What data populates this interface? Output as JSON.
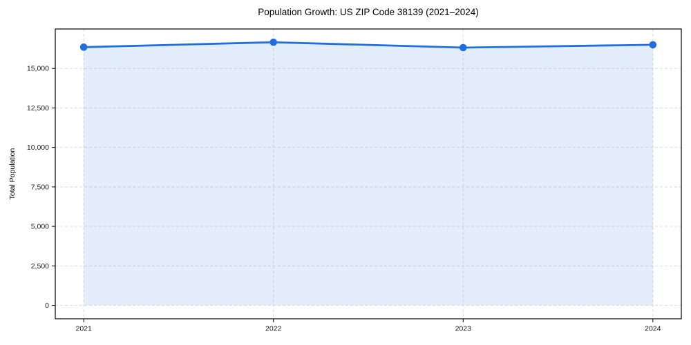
{
  "title": "Population Growth: US ZIP Code 38139 (2021–2024)",
  "chart_data": {
    "type": "area",
    "title": "Population Growth: US ZIP Code 38139 (2021–2024)",
    "xlabel": "",
    "ylabel": "Total Population",
    "categories": [
      "2021",
      "2022",
      "2023",
      "2024"
    ],
    "x": [
      2021,
      2022,
      2023,
      2024
    ],
    "series": [
      {
        "name": "Total Population",
        "values": [
          16350,
          16660,
          16320,
          16500
        ]
      }
    ],
    "baseline": 0,
    "xlim": [
      2020.85,
      2024.15
    ],
    "ylim": [
      -850,
      17500
    ],
    "yticks": [
      0,
      2500,
      5000,
      7500,
      10000,
      12500,
      15000
    ],
    "ytick_labels": [
      "0",
      "2,500",
      "5,000",
      "7,500",
      "10,000",
      "12,500",
      "15,000"
    ],
    "grid": true,
    "legend": "none",
    "colors": {
      "line": "#1f6fe0",
      "marker": "#1f6fe0",
      "fill": "rgba(31,111,224,0.12)",
      "grid": "#d8d8d8",
      "spine": "#000000",
      "tick_text": "#1a1a1a",
      "background": "#ffffff"
    }
  }
}
